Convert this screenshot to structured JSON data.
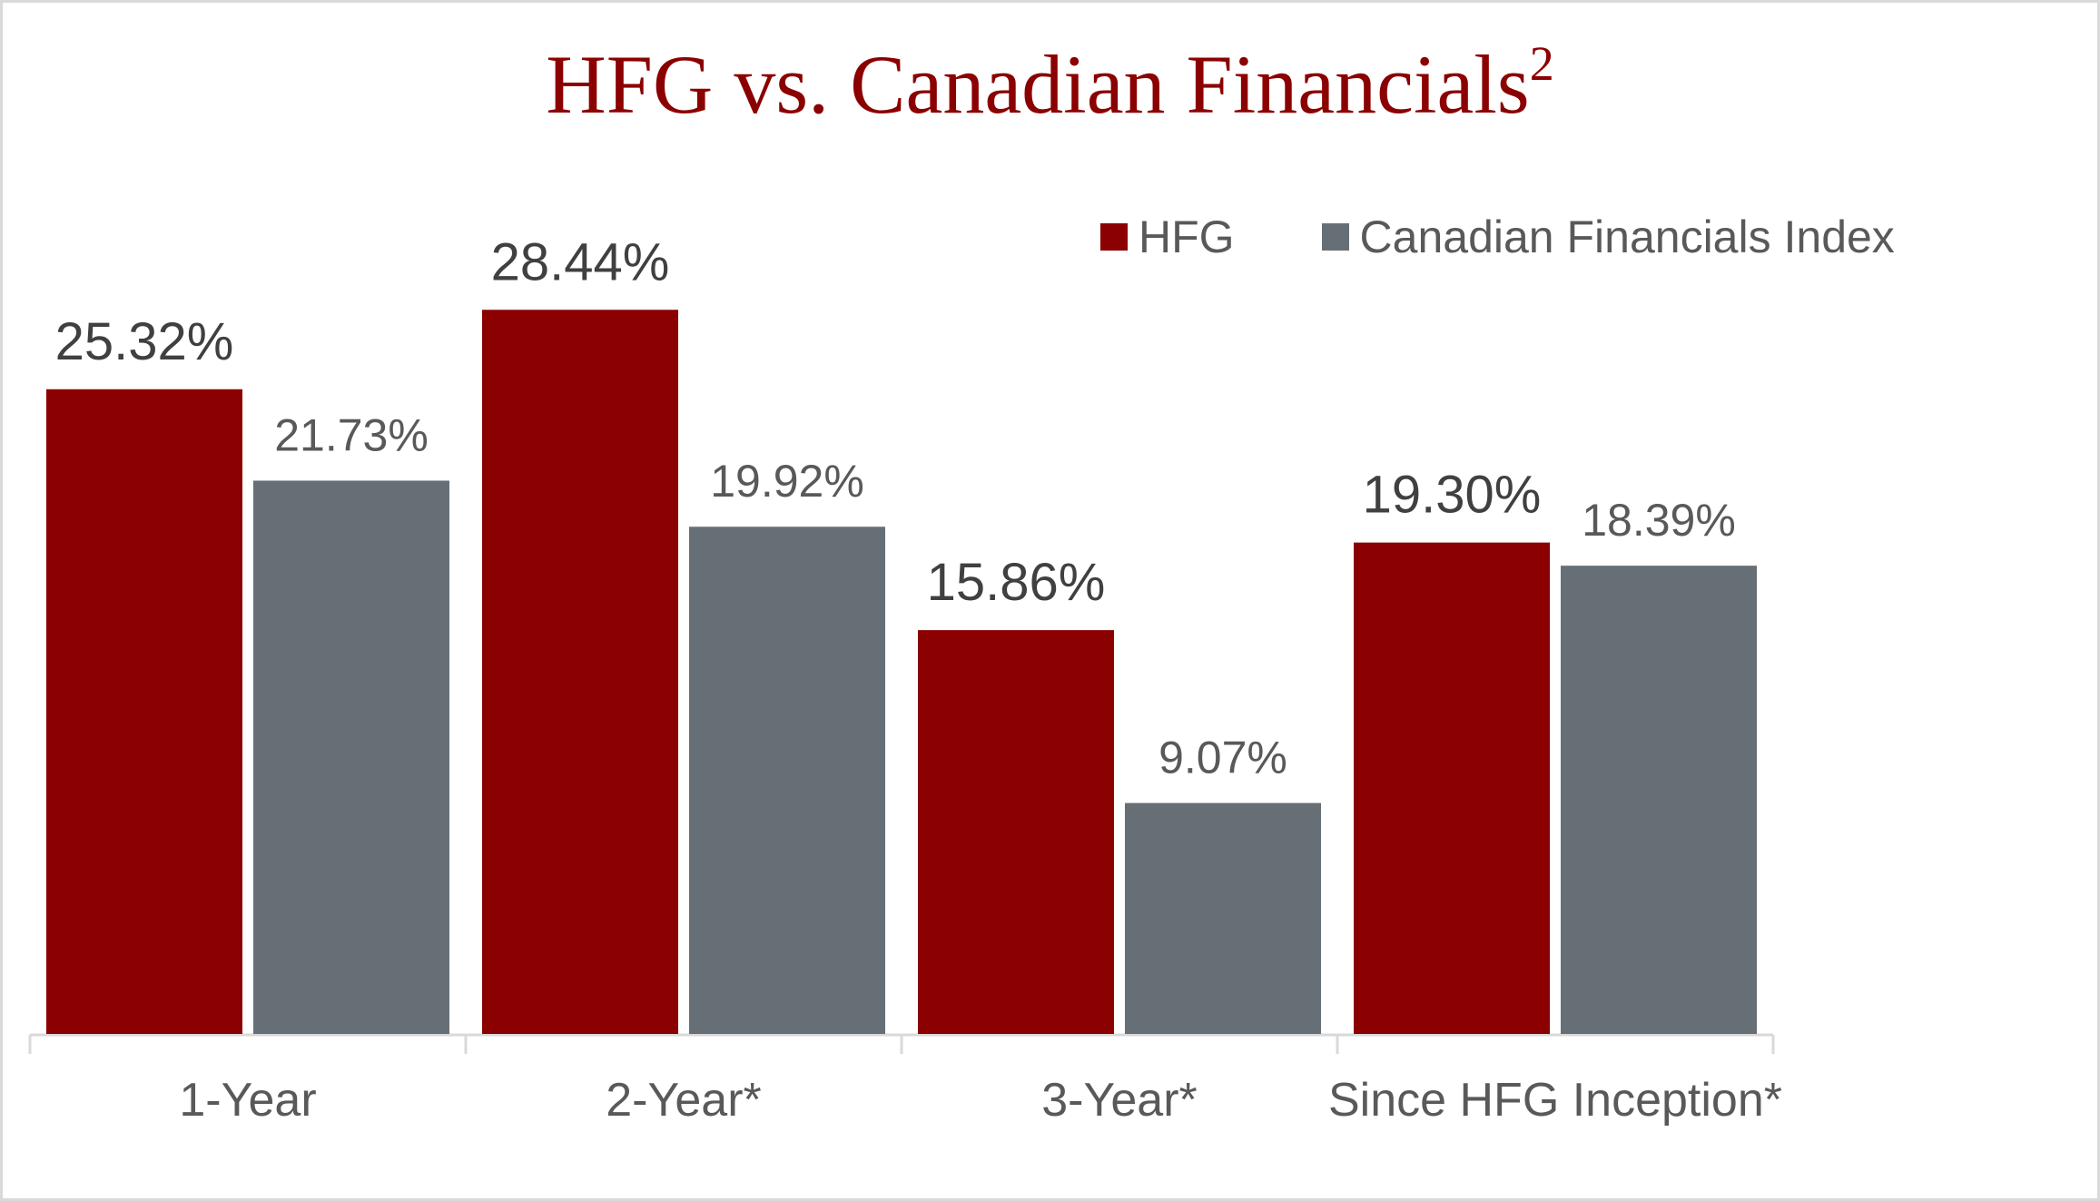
{
  "title": "HFG vs. Canadian Financials",
  "title_superscript": "2",
  "colors": {
    "hfg": "#8b0000",
    "index": "#676f76",
    "axis": "#d9d9d9",
    "label_dark": "#404040",
    "label_light": "#595959"
  },
  "chart_data": {
    "type": "bar",
    "title": "HFG vs. Canadian Financials²",
    "categories": [
      "1-Year",
      "2-Year*",
      "3-Year*",
      "Since HFG Inception*"
    ],
    "series": [
      {
        "name": "HFG",
        "values": [
          25.32,
          28.44,
          15.86,
          19.3
        ],
        "labels": [
          "25.32%",
          "28.44%",
          "15.86%",
          "19.30%"
        ]
      },
      {
        "name": "Canadian Financials Index",
        "values": [
          21.73,
          19.92,
          9.07,
          18.39
        ],
        "labels": [
          "21.73%",
          "19.92%",
          "9.07%",
          "18.39%"
        ]
      }
    ],
    "ylim": [
      0,
      30
    ],
    "grid": false,
    "legend_position": "top-right",
    "xlabel": "",
    "ylabel": ""
  }
}
